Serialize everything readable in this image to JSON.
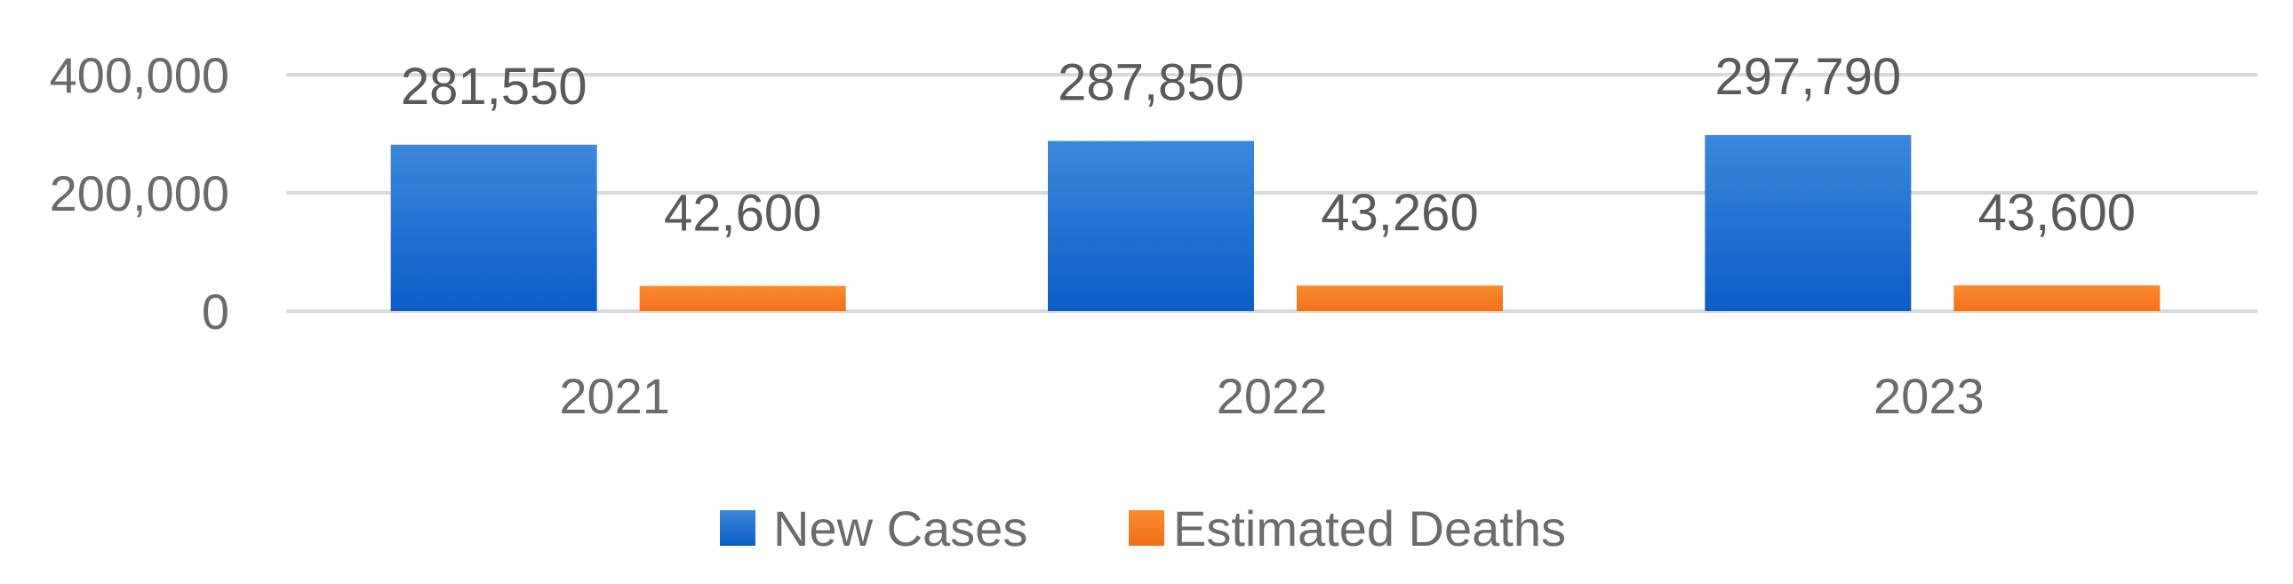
{
  "chart_data": {
    "type": "bar",
    "categories": [
      "2021",
      "2022",
      "2023"
    ],
    "series": [
      {
        "name": "New Cases",
        "values": [
          281550,
          287850,
          297790
        ],
        "labels": [
          "281,550",
          "287,850",
          "297,790"
        ],
        "color": "#1a6fd4"
      },
      {
        "name": "Estimated Deaths",
        "values": [
          42600,
          43260,
          43600
        ],
        "labels": [
          "42,600",
          "43,260",
          "43,600"
        ],
        "color": "#f57c1f"
      }
    ],
    "yticks": [
      0,
      200000,
      400000
    ],
    "ytick_labels": [
      "0",
      "200,000",
      "400,000"
    ],
    "ylim": [
      0,
      400000
    ],
    "grid": true,
    "legend": "bottom-center"
  }
}
